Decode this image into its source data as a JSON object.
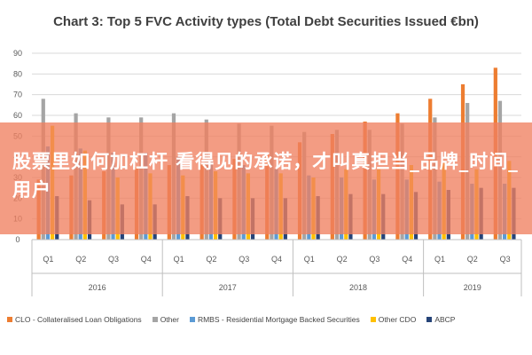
{
  "chart_data": {
    "type": "bar",
    "title": "Chart 3: Top 5 FVC Activity types (Total Debt Securities Issued €bn)",
    "xlabel": "",
    "ylabel": "",
    "ylim": [
      0,
      90
    ],
    "yticks": [
      0,
      10,
      20,
      30,
      40,
      50,
      60,
      70,
      80,
      90
    ],
    "grid": true,
    "legend_position": "bottom",
    "categories": [
      "Q1",
      "Q2",
      "Q3",
      "Q4",
      "Q1",
      "Q2",
      "Q3",
      "Q4",
      "Q1",
      "Q2",
      "Q3",
      "Q4",
      "Q1",
      "Q2",
      "Q3"
    ],
    "years": [
      {
        "label": "2016",
        "quarters": 4
      },
      {
        "label": "2017",
        "quarters": 4
      },
      {
        "label": "2018",
        "quarters": 4
      },
      {
        "label": "2019",
        "quarters": 3
      }
    ],
    "series": [
      {
        "name": "CLO - Collateralised Loan Obligations",
        "color": "#ED7D31",
        "values": [
          29,
          31,
          33,
          35,
          36,
          37,
          39,
          41,
          47,
          51,
          57,
          61,
          68,
          75,
          83
        ]
      },
      {
        "name": "Other",
        "color": "#A5A5A5",
        "values": [
          68,
          61,
          59,
          59,
          61,
          58,
          56,
          55,
          52,
          53,
          53,
          56,
          59,
          66,
          67
        ]
      },
      {
        "name": "RMBS - Residential Mortgage Backed Securities",
        "color": "#5B9BD5",
        "values": [
          45,
          44,
          42,
          42,
          40,
          38,
          36,
          34,
          31,
          30,
          29,
          29,
          28,
          27,
          27
        ]
      },
      {
        "name": "Other CDO",
        "color": "#FFC000",
        "values": [
          55,
          43,
          30,
          32,
          31,
          33,
          32,
          32,
          30,
          34,
          34,
          36,
          37,
          34,
          38
        ]
      },
      {
        "name": "ABCP",
        "color": "#264478",
        "values": [
          21,
          19,
          17,
          17,
          21,
          20,
          20,
          20,
          21,
          22,
          22,
          23,
          24,
          25,
          25
        ]
      }
    ]
  },
  "overlay": {
    "text": "股票里如何加杠杆 看得见的承诺，才叫真担当_品牌_时间_用户"
  }
}
